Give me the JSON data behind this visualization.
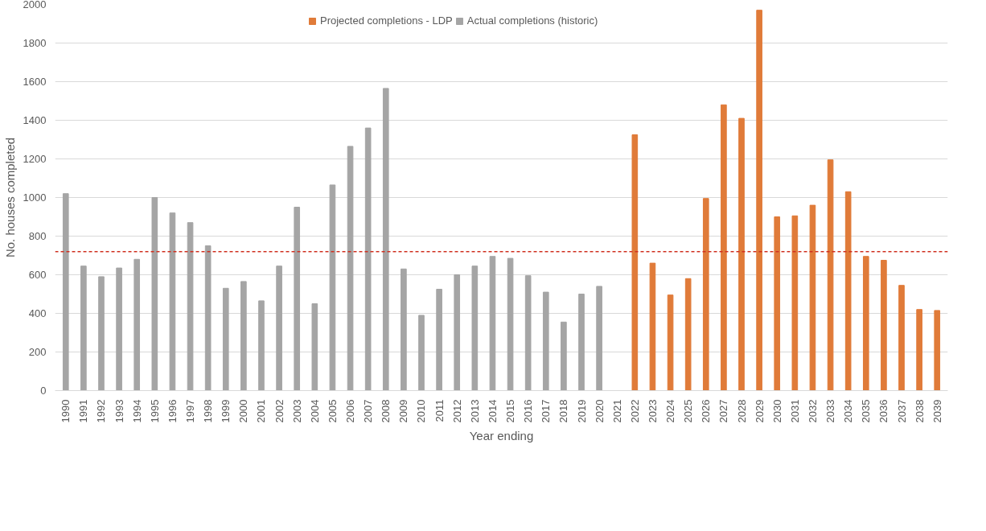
{
  "chart_data": {
    "type": "bar",
    "xlabel": "Year ending",
    "ylabel": "No. houses completed",
    "categories": [
      "1990",
      "1991",
      "1992",
      "1993",
      "1994",
      "1995",
      "1996",
      "1997",
      "1998",
      "1999",
      "2000",
      "2001",
      "2002",
      "2003",
      "2004",
      "2005",
      "2006",
      "2007",
      "2008",
      "2009",
      "2010",
      "2011",
      "2012",
      "2013",
      "2014",
      "2015",
      "2016",
      "2017",
      "2018",
      "2019",
      "2020",
      "2021",
      "2022",
      "2023",
      "2024",
      "2025",
      "2026",
      "2027",
      "2028",
      "2029",
      "2030",
      "2031",
      "2032",
      "2033",
      "2034",
      "2035",
      "2036",
      "2037",
      "2038",
      "2039"
    ],
    "series": [
      {
        "name": "Projected completions - LDP",
        "color": "#e07b39",
        "values": [
          null,
          null,
          null,
          null,
          null,
          null,
          null,
          null,
          null,
          null,
          null,
          null,
          null,
          null,
          null,
          null,
          null,
          null,
          null,
          null,
          null,
          null,
          null,
          null,
          null,
          null,
          null,
          null,
          null,
          null,
          null,
          null,
          1325,
          660,
          495,
          580,
          995,
          1480,
          1410,
          1970,
          900,
          905,
          960,
          1195,
          1030,
          695,
          675,
          545,
          420,
          415
        ]
      },
      {
        "name": "Actual completions (historic)",
        "color": "#a5a5a5",
        "values": [
          1020,
          645,
          590,
          635,
          680,
          1000,
          920,
          870,
          750,
          530,
          565,
          465,
          645,
          950,
          450,
          1065,
          1265,
          1360,
          1565,
          630,
          390,
          525,
          600,
          645,
          695,
          685,
          595,
          510,
          355,
          500,
          540,
          null,
          null,
          null,
          null,
          null,
          null,
          null,
          null,
          null,
          null,
          null,
          null,
          null,
          null,
          null,
          null,
          null,
          null,
          null
        ]
      }
    ],
    "ylim": [
      0,
      2000
    ],
    "yticks": [
      0,
      200,
      400,
      600,
      800,
      1000,
      1200,
      1400,
      1600,
      1800,
      2000
    ],
    "ref_lines": [
      {
        "axis": "y",
        "value": 720,
        "color": "#d03020",
        "line_style": "dashed"
      }
    ],
    "grid": "y",
    "legend": "top"
  }
}
